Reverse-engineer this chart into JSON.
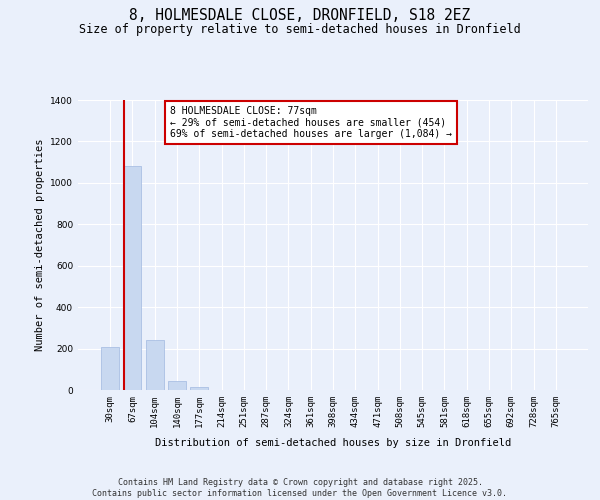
{
  "title_line1": "8, HOLMESDALE CLOSE, DRONFIELD, S18 2EZ",
  "title_line2": "Size of property relative to semi-detached houses in Dronfield",
  "xlabel": "Distribution of semi-detached houses by size in Dronfield",
  "ylabel": "Number of semi-detached properties",
  "categories": [
    "30sqm",
    "67sqm",
    "104sqm",
    "140sqm",
    "177sqm",
    "214sqm",
    "251sqm",
    "287sqm",
    "324sqm",
    "361sqm",
    "398sqm",
    "434sqm",
    "471sqm",
    "508sqm",
    "545sqm",
    "581sqm",
    "618sqm",
    "655sqm",
    "692sqm",
    "728sqm",
    "765sqm"
  ],
  "values": [
    210,
    1080,
    240,
    45,
    15,
    0,
    0,
    0,
    0,
    0,
    0,
    0,
    0,
    0,
    0,
    0,
    0,
    0,
    0,
    0,
    0
  ],
  "bar_color": "#c8d8f0",
  "bar_edge_color": "#a0b8e0",
  "bar_width": 0.8,
  "vline_x": 0.62,
  "vline_color": "#cc0000",
  "annotation_text": "8 HOLMESDALE CLOSE: 77sqm\n← 29% of semi-detached houses are smaller (454)\n69% of semi-detached houses are larger (1,084) →",
  "annotation_box_color": "#ffffff",
  "annotation_edge_color": "#cc0000",
  "ylim": [
    0,
    1400
  ],
  "yticks": [
    0,
    200,
    400,
    600,
    800,
    1000,
    1200,
    1400
  ],
  "bg_color": "#eaf0fb",
  "grid_color": "#ffffff",
  "footer_text": "Contains HM Land Registry data © Crown copyright and database right 2025.\nContains public sector information licensed under the Open Government Licence v3.0.",
  "title_fontsize": 10.5,
  "subtitle_fontsize": 8.5,
  "axis_label_fontsize": 7.5,
  "tick_fontsize": 6.5,
  "annotation_fontsize": 7,
  "footer_fontsize": 6
}
